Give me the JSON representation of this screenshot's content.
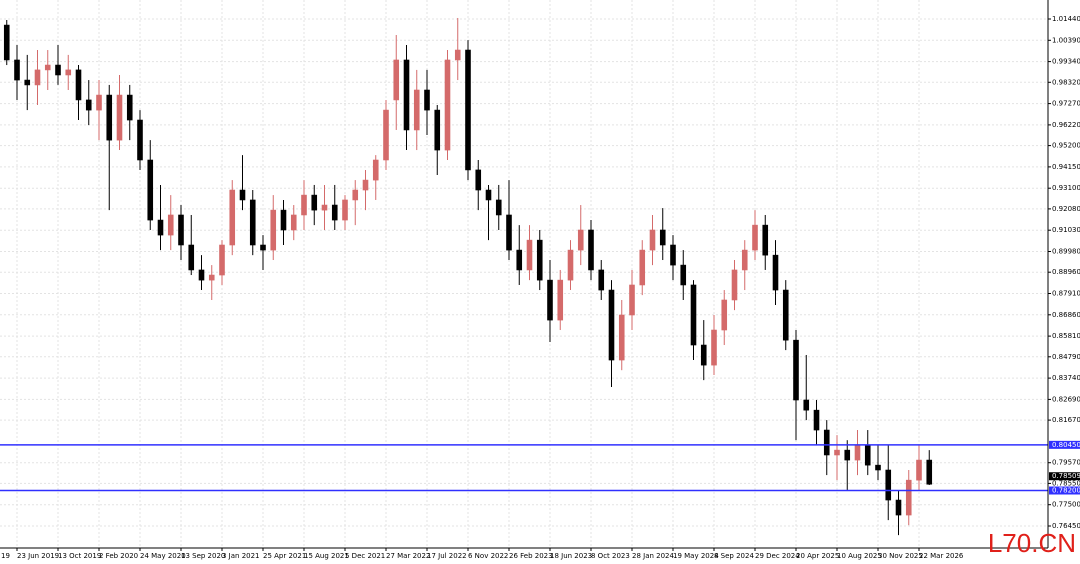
{
  "chart_data": {
    "type": "candlestick",
    "categories": [
      "19",
      null,
      null,
      null,
      "23 Jun 2019",
      null,
      null,
      null,
      "13 Oct 2019",
      null,
      null,
      null,
      "2 Feb 2020",
      null,
      null,
      null,
      "24 May 2020",
      null,
      null,
      null,
      "13 Sep 2020",
      null,
      null,
      null,
      "3 Jan 2021",
      null,
      null,
      null,
      "25 Apr 2021",
      null,
      null,
      null,
      "15 Aug 2021",
      null,
      null,
      null,
      "5 Dec 2021",
      null,
      null,
      null,
      "27 Mar 2022",
      null,
      null,
      null,
      "17 Jul 2022",
      null,
      null,
      null,
      "6 Nov 2022",
      null,
      null,
      null,
      "26 Feb 2023",
      null,
      null,
      null,
      "18 Jun 2023",
      null,
      null,
      null,
      "8 Oct 2023",
      null,
      null,
      null,
      "28 Jan 2024",
      null,
      null,
      null,
      "19 May 2024",
      null,
      null,
      null,
      "8 Sep 2024",
      null,
      null,
      null,
      "29 Dec 2024",
      null,
      null,
      null,
      "20 Apr 2025",
      null,
      null,
      null,
      "10 Aug 2025",
      null,
      null,
      null,
      "30 Nov 2025",
      null,
      null,
      null,
      "22 Mar 2026",
      null
    ],
    "open": [
      null,
      null,
      null,
      1.0114,
      0.9942,
      0.9843,
      0.9819,
      0.9893,
      0.9917,
      0.9868,
      0.9893,
      0.9745,
      0.9695,
      0.9769,
      0.9547,
      0.9769,
      0.9646,
      0.9449,
      0.9153,
      0.9079,
      0.9178,
      0.903,
      0.8907,
      0.8857,
      0.8882,
      0.903,
      0.9301,
      0.9252,
      0.903,
      0.9005,
      0.9202,
      0.9104,
      0.9178,
      0.9276,
      0.9202,
      0.9227,
      0.9153,
      0.9252,
      0.9301,
      0.935,
      0.9449,
      0.9745,
      0.9942,
      0.9597,
      0.9794,
      0.9695,
      0.9498,
      0.9942,
      0.9991,
      0.94,
      0.9301,
      0.9252,
      0.9178,
      0.9005,
      0.8907,
      0.9054,
      0.8857,
      0.866,
      0.8857,
      0.9005,
      0.9104,
      0.8907,
      0.8808,
      0.8463,
      0.8685,
      0.8833,
      0.9005,
      0.9104,
      0.903,
      0.8931,
      0.8833,
      0.8537,
      0.8438,
      0.8611,
      0.8759,
      0.8907,
      0.9005,
      0.9128,
      0.898,
      0.8808,
      0.8561,
      0.8266,
      0.8216,
      0.8118,
      0.7995,
      0.8019,
      0.797,
      0.8044,
      0.7945,
      0.7921,
      0.7773,
      0.7699,
      0.7871,
      0.797
    ],
    "high": [
      null,
      null,
      null,
      1.0139,
      1.0016,
      0.9967,
      0.9991,
      0.9991,
      1.0016,
      0.9967,
      0.9917,
      0.9843,
      0.9843,
      0.9819,
      0.9868,
      0.9819,
      0.9695,
      0.9547,
      0.9326,
      0.9276,
      0.9227,
      0.9178,
      0.898,
      0.8931,
      0.9054,
      0.935,
      0.9473,
      0.9301,
      0.9079,
      0.9276,
      0.9252,
      0.9227,
      0.935,
      0.9326,
      0.9326,
      0.9326,
      0.9276,
      0.935,
      0.94,
      0.9473,
      0.9745,
      1.0065,
      1.0016,
      0.9893,
      0.9893,
      0.972,
      0.9991,
      1.0149,
      1.004,
      0.9449,
      0.9326,
      0.9326,
      0.935,
      0.9128,
      0.9128,
      0.9104,
      0.8956,
      0.8907,
      0.9054,
      0.9227,
      0.9153,
      0.8956,
      0.8857,
      0.8759,
      0.8907,
      0.9054,
      0.9178,
      0.9212,
      0.9079,
      0.9005,
      0.8857,
      0.866,
      0.8685,
      0.8808,
      0.8956,
      0.9054,
      0.9202,
      0.9178,
      0.9054,
      0.8857,
      0.8611,
      0.8488,
      0.8266,
      0.8167,
      0.8093,
      0.8068,
      0.8118,
      0.8118,
      0.8044,
      0.8044,
      0.7822,
      0.7921,
      0.8044,
      0.8019
    ],
    "low": [
      null,
      null,
      null,
      0.9917,
      0.9745,
      0.9695,
      0.972,
      0.9794,
      0.9819,
      0.9794,
      0.9646,
      0.9621,
      0.9547,
      0.9202,
      0.9498,
      0.9547,
      0.94,
      0.9104,
      0.9005,
      0.9005,
      0.8956,
      0.8882,
      0.8808,
      0.8759,
      0.8833,
      0.898,
      0.9202,
      0.898,
      0.8907,
      0.8956,
      0.903,
      0.9054,
      0.9104,
      0.9128,
      0.9104,
      0.9104,
      0.9104,
      0.9128,
      0.9202,
      0.9252,
      0.94,
      0.9597,
      0.9498,
      0.9498,
      0.9572,
      0.9375,
      0.9449,
      0.9843,
      0.935,
      0.9202,
      0.9054,
      0.9104,
      0.8956,
      0.8833,
      0.8857,
      0.8808,
      0.8552,
      0.8611,
      0.8808,
      0.8931,
      0.8857,
      0.8759,
      0.833,
      0.8413,
      0.8611,
      0.8783,
      0.8931,
      0.8956,
      0.8857,
      0.8759,
      0.8463,
      0.8364,
      0.8389,
      0.8537,
      0.8709,
      0.8808,
      0.8956,
      0.8907,
      0.8734,
      0.8512,
      0.8068,
      0.8167,
      0.8044,
      0.7896,
      0.7871,
      0.7822,
      0.7896,
      0.7896,
      0.7871,
      0.7674,
      0.76,
      0.7649,
      0.7822,
      0.7847
    ],
    "close": [
      null,
      null,
      null,
      0.9942,
      0.9843,
      0.9819,
      0.9893,
      0.9917,
      0.9868,
      0.9893,
      0.9745,
      0.9695,
      0.9769,
      0.9547,
      0.9769,
      0.9646,
      0.9449,
      0.9153,
      0.9079,
      0.9178,
      0.903,
      0.8907,
      0.8857,
      0.8882,
      0.903,
      0.9301,
      0.9252,
      0.903,
      0.9005,
      0.9202,
      0.9104,
      0.9178,
      0.9276,
      0.9202,
      0.9227,
      0.9153,
      0.9252,
      0.9301,
      0.935,
      0.9449,
      0.9695,
      0.9942,
      0.9597,
      0.9794,
      0.9695,
      0.9498,
      0.9942,
      0.9991,
      0.94,
      0.9301,
      0.9252,
      0.9178,
      0.9005,
      0.8907,
      0.9054,
      0.8857,
      0.866,
      0.8857,
      0.9005,
      0.9104,
      0.8907,
      0.8808,
      0.8463,
      0.8685,
      0.8833,
      0.9005,
      0.9104,
      0.903,
      0.8931,
      0.8833,
      0.8537,
      0.8438,
      0.8611,
      0.8759,
      0.8907,
      0.9005,
      0.9128,
      0.898,
      0.8808,
      0.8561,
      0.8266,
      0.8216,
      0.8118,
      0.7995,
      0.8019,
      0.797,
      0.8044,
      0.7945,
      0.7921,
      0.7773,
      0.7699,
      0.7871,
      0.797,
      0.78509
    ],
    "up_color": "#d46a6a",
    "down_color": "#000000",
    "ylim": [
      0.75366,
      1.02376
    ],
    "yticks": [
      {
        "value": 1.0144,
        "label": "1.01440"
      },
      {
        "value": 1.0039,
        "label": "1.00390"
      },
      {
        "value": 0.9934,
        "label": "0.99340"
      },
      {
        "value": 0.9832,
        "label": "0.98320"
      },
      {
        "value": 0.9727,
        "label": "0.97270"
      },
      {
        "value": 0.9622,
        "label": "0.96220"
      },
      {
        "value": 0.952,
        "label": "0.95200"
      },
      {
        "value": 0.9415,
        "label": "0.94150"
      },
      {
        "value": 0.931,
        "label": "0.93100"
      },
      {
        "value": 0.9208,
        "label": "0.92080"
      },
      {
        "value": 0.9103,
        "label": "0.91030"
      },
      {
        "value": 0.8998,
        "label": "0.89980"
      },
      {
        "value": 0.8896,
        "label": "0.88960"
      },
      {
        "value": 0.8791,
        "label": "0.87910"
      },
      {
        "value": 0.8686,
        "label": "0.86860"
      },
      {
        "value": 0.8581,
        "label": "0.85810"
      },
      {
        "value": 0.8479,
        "label": "0.84790"
      },
      {
        "value": 0.8374,
        "label": "0.83740"
      },
      {
        "value": 0.8269,
        "label": "0.82690"
      },
      {
        "value": 0.8167,
        "label": "0.81670"
      },
      {
        "value": 0.7957,
        "label": "0.79570"
      },
      {
        "value": 0.7855,
        "label": "0.78550"
      },
      {
        "value": 0.775,
        "label": "0.77500"
      },
      {
        "value": 0.7645,
        "label": "0.76450"
      }
    ],
    "grid": true,
    "hlines": [
      {
        "value": 0.8045,
        "label": "0.80450",
        "color": "#3030ff"
      },
      {
        "value": 0.782,
        "label": "0.78200",
        "color": "#3030ff"
      }
    ],
    "last_price": {
      "value": 0.78509,
      "label": "0.78509"
    },
    "watermark": "L70.CN"
  }
}
